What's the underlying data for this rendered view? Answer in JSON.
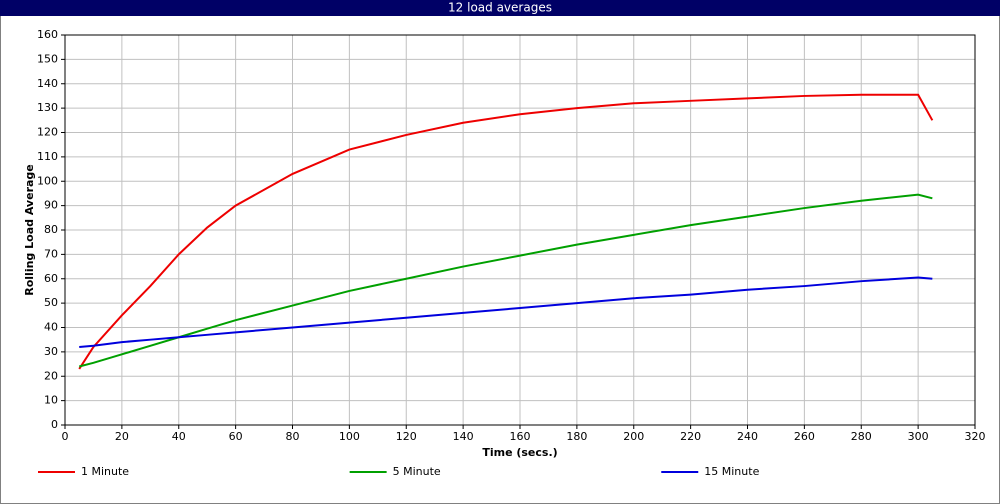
{
  "chart_data": {
    "type": "line",
    "title": "12 load averages",
    "x_label": "Time (secs.)",
    "y_label": "Rolling Load Average",
    "x": [
      5,
      10,
      20,
      30,
      40,
      50,
      60,
      80,
      100,
      120,
      140,
      160,
      180,
      200,
      220,
      240,
      260,
      280,
      300,
      305
    ],
    "series": [
      {
        "name": "1 Minute",
        "color": "#ee0000",
        "values": [
          23,
          32,
          45,
          57,
          70,
          81,
          90,
          103,
          113,
          119,
          124,
          127.5,
          130,
          132,
          133,
          134,
          135,
          135.5,
          135.5,
          125
        ]
      },
      {
        "name": "5 Minute",
        "color": "#00a000",
        "values": [
          24,
          25.5,
          29,
          32.5,
          36,
          39.5,
          43,
          49,
          55,
          60,
          65,
          69.5,
          74,
          78,
          82,
          85.5,
          89,
          92,
          94.5,
          93
        ]
      },
      {
        "name": "15 Minute",
        "color": "#0000dd",
        "values": [
          32,
          32.5,
          34,
          35,
          36,
          37,
          38,
          40,
          42,
          44,
          46,
          48,
          50,
          52,
          53.5,
          55.5,
          57,
          59,
          60.5,
          60
        ]
      }
    ],
    "xlim": [
      0,
      320
    ],
    "xticks": [
      0,
      20,
      40,
      60,
      80,
      100,
      120,
      140,
      160,
      180,
      200,
      220,
      240,
      260,
      280,
      300,
      320
    ],
    "ylim": [
      0,
      160
    ],
    "yticks": [
      0,
      10,
      20,
      30,
      40,
      50,
      60,
      70,
      80,
      90,
      100,
      110,
      120,
      130,
      140,
      150,
      160
    ],
    "grid": true,
    "legend": "bottom"
  }
}
